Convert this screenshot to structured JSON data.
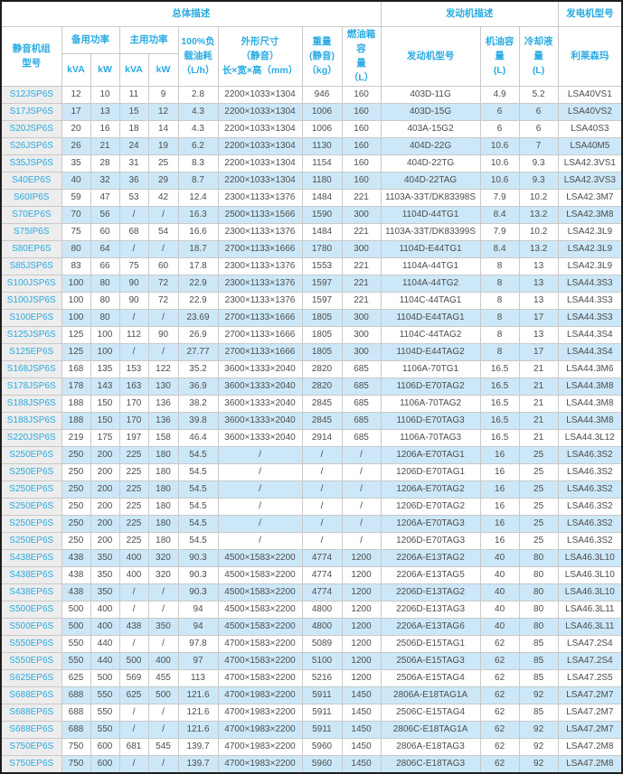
{
  "colors": {
    "accent_header_text": "#29abe2",
    "model_link_text": "#29abe2",
    "stripe_blue": "#cce8f8",
    "model_column_bg": "#ededed",
    "grid_border": "#c9c9c9",
    "outer_border": "#1d1d1d",
    "data_text": "#4d4d4d"
  },
  "chart_data": {
    "type": "table",
    "top_headers": [
      {
        "label": "总体描述",
        "colspan": 9
      },
      {
        "label": "发动机描述",
        "colspan": 3
      },
      {
        "label": "发电机型号",
        "colspan": 1
      }
    ],
    "group_headers": {
      "model": "静音机组\n型号",
      "standby_power": "备用功率",
      "prime_power": "主用功率",
      "fuel_100_load": "100%负\n载油耗\n（L/h）",
      "dimensions": "外形尺寸\n（静音）\n长×宽×高（mm）",
      "weight": "重量\n(静音)\n（kg）",
      "fuel_tank": "燃油箱容\n量\n（L）",
      "engine_model": "发动机型号",
      "oil_capacity": "机油容量\n(L)",
      "coolant_capacity": "冷却液量\n(L)",
      "alternator": "利莱森玛"
    },
    "unit_headers": [
      "kVA",
      "kW",
      "kVA",
      "kW"
    ],
    "columns": [
      "静音机组型号",
      "备用功率kVA",
      "备用功率kW",
      "主用功率kVA",
      "主用功率kW",
      "100%负载油耗(L/h)",
      "外形尺寸(静音)长×宽×高(mm)",
      "重量(静音)(kg)",
      "燃油箱容量(L)",
      "发动机型号",
      "机油容量(L)",
      "冷却液量(L)",
      "利莱森玛"
    ],
    "rows": [
      [
        "S12JSP6S",
        "12",
        "10",
        "11",
        "9",
        "2.8",
        "2200×1033×1304",
        "946",
        "160",
        "403D-11G",
        "4.9",
        "5.2",
        "LSA40VS1"
      ],
      [
        "S17JSP6S",
        "17",
        "13",
        "15",
        "12",
        "4.3",
        "2200×1033×1304",
        "1006",
        "160",
        "403D-15G",
        "6",
        "6",
        "LSA40VS2"
      ],
      [
        "S20JSP6S",
        "20",
        "16",
        "18",
        "14",
        "4.3",
        "2200×1033×1304",
        "1006",
        "160",
        "403A-15G2",
        "6",
        "6",
        "LSA40S3"
      ],
      [
        "S26JSP6S",
        "26",
        "21",
        "24",
        "19",
        "6.2",
        "2200×1033×1304",
        "1130",
        "160",
        "404D-22G",
        "10.6",
        "7",
        "LSA40M5"
      ],
      [
        "S35JSP6S",
        "35",
        "28",
        "31",
        "25",
        "8.3",
        "2200×1033×1304",
        "1154",
        "160",
        "404D-22TG",
        "10.6",
        "9.3",
        "LSA42.3VS1"
      ],
      [
        "S40EP6S",
        "40",
        "32",
        "36",
        "29",
        "8.7",
        "2200×1033×1304",
        "1180",
        "160",
        "404D-22TAG",
        "10.6",
        "9.3",
        "LSA42.3VS3"
      ],
      [
        "S60IP6S",
        "59",
        "47",
        "53",
        "42",
        "12.4",
        "2300×1133×1376",
        "1484",
        "221",
        "1103A-33T/DK83398S",
        "7.9",
        "10.2",
        "LSA42.3M7"
      ],
      [
        "S70EP6S",
        "70",
        "56",
        "/",
        "/",
        "16.3",
        "2500×1133×1566",
        "1590",
        "300",
        "1104D-44TG1",
        "8.4",
        "13.2",
        "LSA42.3M8"
      ],
      [
        "S75IP6S",
        "75",
        "60",
        "68",
        "54",
        "16.6",
        "2300×1133×1376",
        "1484",
        "221",
        "1103A-33T/DK83399S",
        "7.9",
        "10.2",
        "LSA42.3L9"
      ],
      [
        "S80EP6S",
        "80",
        "64",
        "/",
        "/",
        "18.7",
        "2700×1133×1666",
        "1780",
        "300",
        "1104D-E44TG1",
        "8.4",
        "13.2",
        "LSA42.3L9"
      ],
      [
        "S85JSP6S",
        "83",
        "66",
        "75",
        "60",
        "17.8",
        "2300×1133×1376",
        "1553",
        "221",
        "1104A-44TG1",
        "8",
        "13",
        "LSA42.3L9"
      ],
      [
        "S100JSP6S",
        "100",
        "80",
        "90",
        "72",
        "22.9",
        "2300×1133×1376",
        "1597",
        "221",
        "1104A-44TG2",
        "8",
        "13",
        "LSA44.3S3"
      ],
      [
        "S100JSP6S",
        "100",
        "80",
        "90",
        "72",
        "22.9",
        "2300×1133×1376",
        "1597",
        "221",
        "1104C-44TAG1",
        "8",
        "13",
        "LSA44.3S3"
      ],
      [
        "S100EP6S",
        "100",
        "80",
        "/",
        "/",
        "23.69",
        "2700×1133×1666",
        "1805",
        "300",
        "1104D-E44TAG1",
        "8",
        "17",
        "LSA44.3S3"
      ],
      [
        "S125JSP6S",
        "125",
        "100",
        "112",
        "90",
        "26.9",
        "2700×1133×1666",
        "1805",
        "300",
        "1104C-44TAG2",
        "8",
        "13",
        "LSA44.3S4"
      ],
      [
        "S125EP6S",
        "125",
        "100",
        "/",
        "/",
        "27.77",
        "2700×1133×1666",
        "1805",
        "300",
        "1104D-E44TAG2",
        "8",
        "17",
        "LSA44.3S4"
      ],
      [
        "S168JSP6S",
        "168",
        "135",
        "153",
        "122",
        "35.2",
        "3600×1333×2040",
        "2820",
        "685",
        "1106A-70TG1",
        "16.5",
        "21",
        "LSA44.3M6"
      ],
      [
        "S178JSP6S",
        "178",
        "143",
        "163",
        "130",
        "36.9",
        "3600×1333×2040",
        "2820",
        "685",
        "1106D-E70TAG2",
        "16.5",
        "21",
        "LSA44.3M8"
      ],
      [
        "S188JSP6S",
        "188",
        "150",
        "170",
        "136",
        "38.2",
        "3600×1333×2040",
        "2845",
        "685",
        "1106A-70TAG2",
        "16.5",
        "21",
        "LSA44.3M8"
      ],
      [
        "S188JSP6S",
        "188",
        "150",
        "170",
        "136",
        "39.8",
        "3600×1333×2040",
        "2845",
        "685",
        "1106D-E70TAG3",
        "16.5",
        "21",
        "LSA44.3M8"
      ],
      [
        "S220JSP6S",
        "219",
        "175",
        "197",
        "158",
        "46.4",
        "3600×1333×2040",
        "2914",
        "685",
        "1106A-70TAG3",
        "16.5",
        "21",
        "LSA44.3L12"
      ],
      [
        "S250EP6S",
        "250",
        "200",
        "225",
        "180",
        "54.5",
        "/",
        "/",
        "/",
        "1206A-E70TAG1",
        "16",
        "25",
        "LSA46.3S2"
      ],
      [
        "S250EP6S",
        "250",
        "200",
        "225",
        "180",
        "54.5",
        "/",
        "/",
        "/",
        "1206D-E70TAG1",
        "16",
        "25",
        "LSA46.3S2"
      ],
      [
        "S250EP6S",
        "250",
        "200",
        "225",
        "180",
        "54.5",
        "/",
        "/",
        "/",
        "1206A-E70TAG2",
        "16",
        "25",
        "LSA46.3S2"
      ],
      [
        "S250EP6S",
        "250",
        "200",
        "225",
        "180",
        "54.5",
        "/",
        "/",
        "/",
        "1206D-E70TAG2",
        "16",
        "25",
        "LSA46.3S2"
      ],
      [
        "S250EP6S",
        "250",
        "200",
        "225",
        "180",
        "54.5",
        "/",
        "/",
        "/",
        "1206A-E70TAG3",
        "16",
        "25",
        "LSA46.3S2"
      ],
      [
        "S250EP6S",
        "250",
        "200",
        "225",
        "180",
        "54.5",
        "/",
        "/",
        "/",
        "1206D-E70TAG3",
        "16",
        "25",
        "LSA46.3S2"
      ],
      [
        "S438EP6S",
        "438",
        "350",
        "400",
        "320",
        "90.3",
        "4500×1583×2200",
        "4774",
        "1200",
        "2206A-E13TAG2",
        "40",
        "80",
        "LSA46.3L10"
      ],
      [
        "S438EP6S",
        "438",
        "350",
        "400",
        "320",
        "90.3",
        "4500×1583×2200",
        "4774",
        "1200",
        "2206A-E13TAG5",
        "40",
        "80",
        "LSA46.3L10"
      ],
      [
        "S438EP6S",
        "438",
        "350",
        "/",
        "/",
        "90.3",
        "4500×1583×2200",
        "4774",
        "1200",
        "2206D-E13TAG2",
        "40",
        "80",
        "LSA46.3L10"
      ],
      [
        "S500EP6S",
        "500",
        "400",
        "/",
        "/",
        "94",
        "4500×1583×2200",
        "4800",
        "1200",
        "2206D-E13TAG3",
        "40",
        "80",
        "LSA46.3L11"
      ],
      [
        "S500EP6S",
        "500",
        "400",
        "438",
        "350",
        "94",
        "4500×1583×2200",
        "4800",
        "1200",
        "2206A-E13TAG6",
        "40",
        "80",
        "LSA46.3L11"
      ],
      [
        "S550EP6S",
        "550",
        "440",
        "/",
        "/",
        "97.8",
        "4700×1583×2200",
        "5089",
        "1200",
        "2506D-E15TAG1",
        "62",
        "85",
        "LSA47.2S4"
      ],
      [
        "S550EP6S",
        "550",
        "440",
        "500",
        "400",
        "97",
        "4700×1583×2200",
        "5100",
        "1200",
        "2506A-E15TAG3",
        "62",
        "85",
        "LSA47.2S4"
      ],
      [
        "S625EP6S",
        "625",
        "500",
        "569",
        "455",
        "113",
        "4700×1583×2200",
        "5216",
        "1200",
        "2506A-E15TAG4",
        "62",
        "85",
        "LSA47.2S5"
      ],
      [
        "S688EP6S",
        "688",
        "550",
        "625",
        "500",
        "121.6",
        "4700×1983×2200",
        "5911",
        "1450",
        "2806A-E18TAG1A",
        "62",
        "92",
        "LSA47.2M7"
      ],
      [
        "S688EP6S",
        "688",
        "550",
        "/",
        "/",
        "121.6",
        "4700×1983×2200",
        "5911",
        "1450",
        "2506C-E15TAG4",
        "62",
        "85",
        "LSA47.2M7"
      ],
      [
        "S688EP6S",
        "688",
        "550",
        "/",
        "/",
        "121.6",
        "4700×1983×2200",
        "5911",
        "1450",
        "2806C-E18TAG1A",
        "62",
        "92",
        "LSA47.2M7"
      ],
      [
        "S750EP6S",
        "750",
        "600",
        "681",
        "545",
        "139.7",
        "4700×1983×2200",
        "5960",
        "1450",
        "2806A-E18TAG3",
        "62",
        "92",
        "LSA47.2M8"
      ],
      [
        "S750EP6S",
        "750",
        "600",
        "/",
        "/",
        "139.7",
        "4700×1983×2200",
        "5960",
        "1450",
        "2806C-E18TAG3",
        "62",
        "92",
        "LSA47.2M8"
      ]
    ]
  }
}
